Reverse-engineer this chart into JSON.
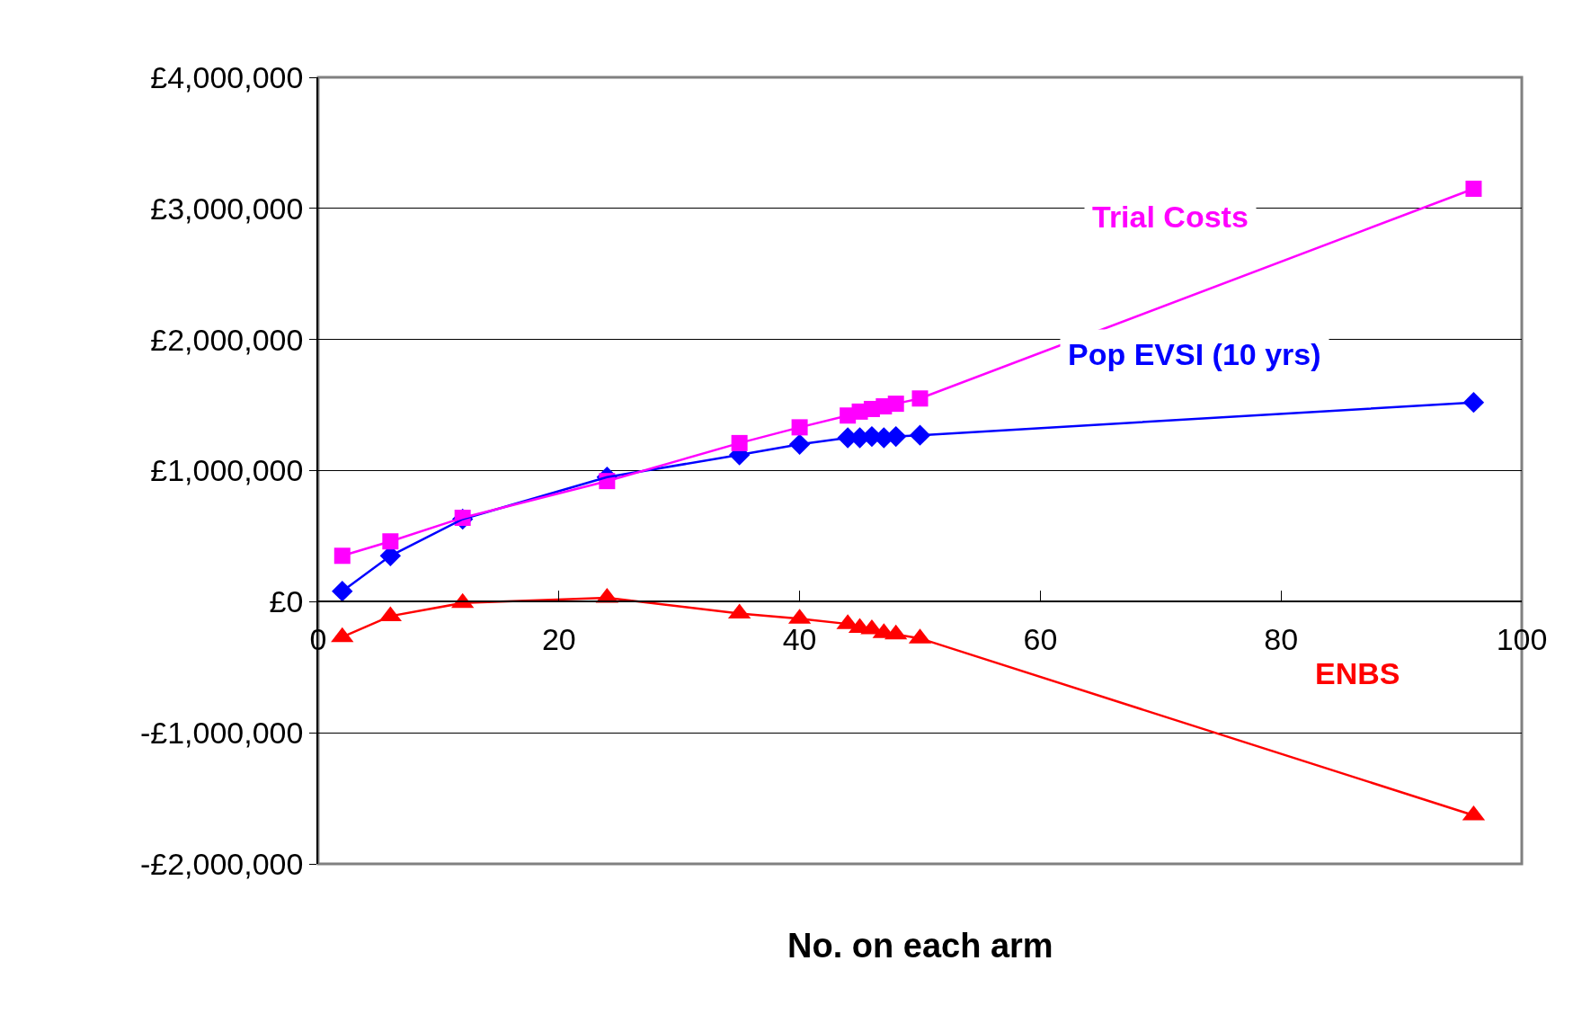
{
  "chart_data": {
    "type": "line",
    "xlabel": "No. on each arm",
    "x": [
      2,
      6,
      12,
      24,
      35,
      40,
      44,
      45,
      46,
      47,
      48,
      50,
      96
    ],
    "series": [
      {
        "name": "Trial Costs",
        "color": "#ff00ff",
        "marker": "square",
        "values": [
          350000,
          460000,
          640000,
          920000,
          1210000,
          1330000,
          1420000,
          1450000,
          1470000,
          1490000,
          1510000,
          1550000,
          3150000
        ]
      },
      {
        "name": "Pop EVSI (10 yrs)",
        "color": "#0000ff",
        "marker": "diamond",
        "values": [
          80000,
          350000,
          630000,
          950000,
          1120000,
          1200000,
          1250000,
          1250000,
          1260000,
          1250000,
          1260000,
          1270000,
          1520000
        ]
      },
      {
        "name": "ENBS",
        "color": "#ff0000",
        "marker": "triangle",
        "values": [
          -270000,
          -110000,
          -10000,
          30000,
          -90000,
          -130000,
          -170000,
          -200000,
          -210000,
          -240000,
          -250000,
          -280000,
          -1630000
        ]
      }
    ],
    "xlim": [
      0,
      100
    ],
    "xticks": [
      0,
      20,
      40,
      60,
      80,
      100
    ],
    "ylim": [
      -2000000,
      4000000
    ],
    "yticks": [
      {
        "value": -2000000,
        "label": "-£2,000,000"
      },
      {
        "value": -1000000,
        "label": "-£1,000,000"
      },
      {
        "value": 0,
        "label": "£0"
      },
      {
        "value": 1000000,
        "label": "£1,000,000"
      },
      {
        "value": 2000000,
        "label": "£2,000,000"
      },
      {
        "value": 3000000,
        "label": "£3,000,000"
      },
      {
        "value": 4000000,
        "label": "£4,000,000"
      }
    ],
    "grid": "y",
    "legend": false
  }
}
